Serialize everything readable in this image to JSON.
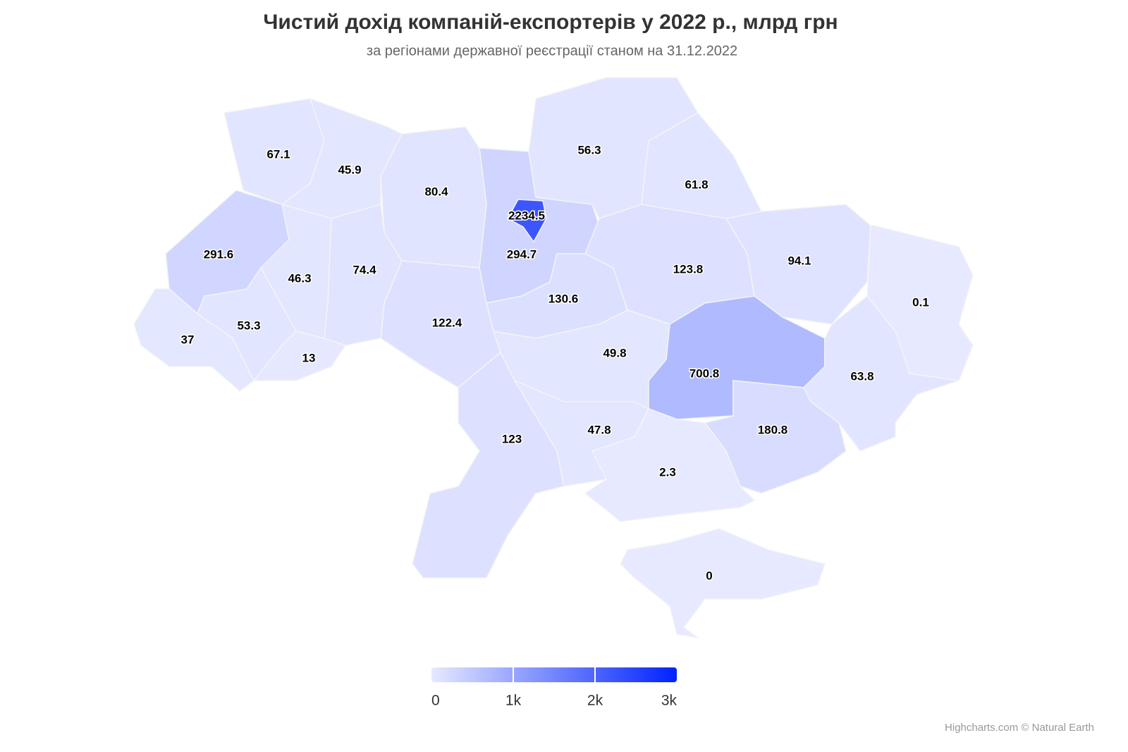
{
  "chart_data": {
    "type": "map",
    "title": "Чистий дохід компаній-експортерів у 2022 р., млрд грн",
    "subtitle": "за регіонами державної реєстрації станом на 31.12.2022",
    "values": [
      67.1,
      45.9,
      80.4,
      2234.5,
      294.7,
      56.3,
      61.8,
      291.6,
      46.3,
      74.4,
      122.4,
      130.6,
      123.8,
      94.1,
      0.1,
      37,
      53.3,
      13,
      49.8,
      700.8,
      63.8,
      123,
      47.8,
      180.8,
      2.3,
      0
    ],
    "color_axis": {
      "min": 0,
      "max": 3000,
      "min_color": "#e6e9ff",
      "max_color": "#0022ff",
      "ticks": [
        0,
        {
          "value": 1000,
          "label": "1k"
        },
        {
          "value": 2000,
          "label": "2k"
        },
        {
          "value": 3000,
          "label": "3k"
        }
      ]
    },
    "credits": "Highcharts.com © Natural Earth"
  }
}
